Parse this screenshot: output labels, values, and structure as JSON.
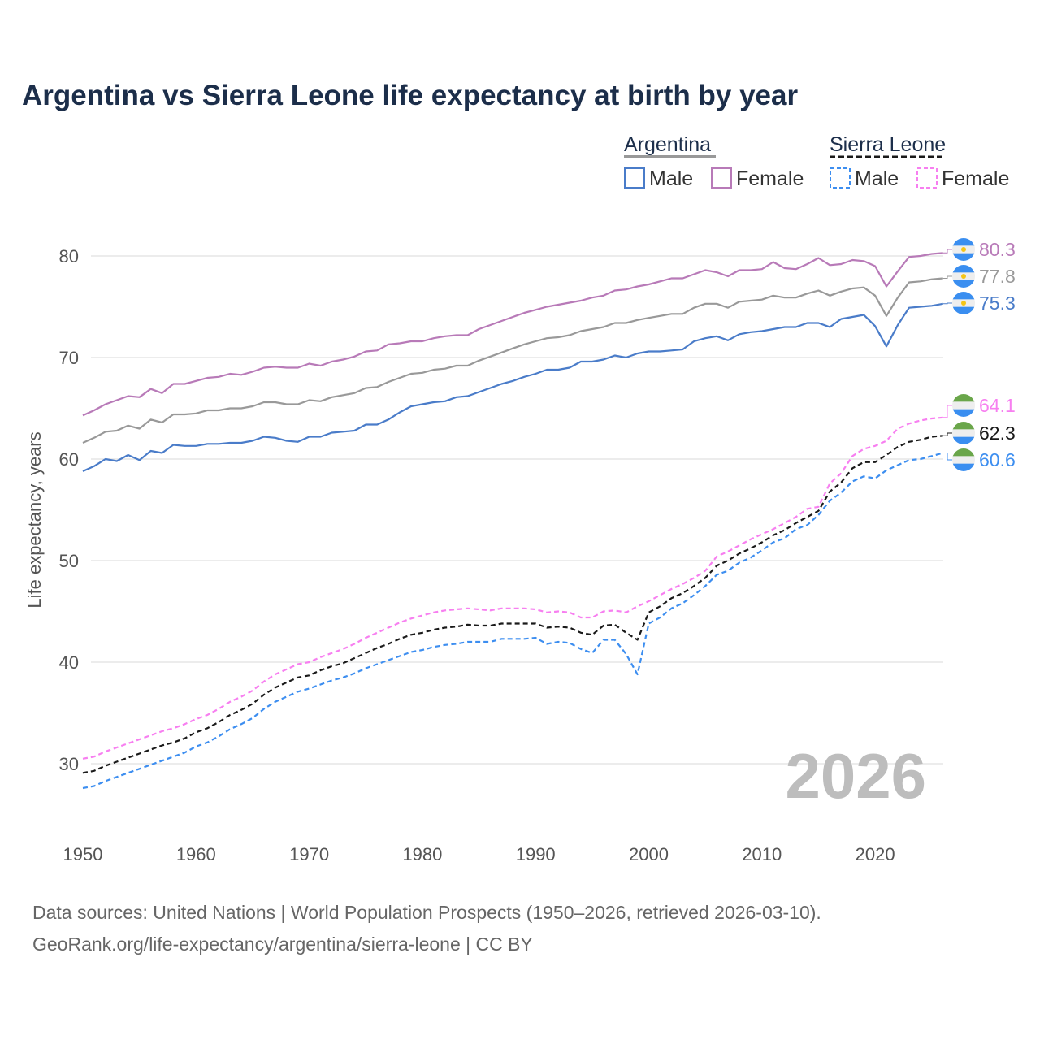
{
  "title": "Argentina vs Sierra Leone life expectancy at birth by year",
  "legend": {
    "groups": [
      {
        "name": "Argentina",
        "items": [
          "Male",
          "Female"
        ]
      },
      {
        "name": "Sierra Leone",
        "items": [
          "Male",
          "Female"
        ]
      }
    ]
  },
  "year_watermark": "2026",
  "source_line1": "Data sources: United Nations | World Population Prospects (1950–2026, retrieved 2026-03-10).",
  "source_line2": "GeoRank.org/life-expectancy/argentina/sierra-leone | CC BY",
  "chart_data": {
    "type": "line",
    "title": "Argentina vs Sierra Leone life expectancy at birth by year",
    "xlabel": "",
    "ylabel": "Life expectancy, years",
    "xlim": [
      1950,
      2026
    ],
    "ylim": [
      26,
      83
    ],
    "xticks": [
      "1950",
      "1960",
      "1970",
      "1980",
      "1990",
      "2000",
      "2010",
      "2020"
    ],
    "yticks": [
      "30",
      "40",
      "50",
      "60",
      "70",
      "80"
    ],
    "grid": true,
    "legend_position": "top-right",
    "x_start": 1950,
    "series": [
      {
        "name": "Argentina Female",
        "country": "Argentina",
        "color": "#b87ab8",
        "dash": false,
        "end_label": "80.3",
        "values": [
          64.3,
          64.8,
          65.4,
          65.8,
          66.2,
          66.1,
          66.9,
          66.5,
          67.4,
          67.4,
          67.7,
          68.0,
          68.1,
          68.4,
          68.3,
          68.6,
          69.0,
          69.1,
          69.0,
          69.0,
          69.4,
          69.2,
          69.6,
          69.8,
          70.1,
          70.6,
          70.7,
          71.3,
          71.4,
          71.6,
          71.6,
          71.9,
          72.1,
          72.2,
          72.2,
          72.8,
          73.2,
          73.6,
          74.0,
          74.4,
          74.7,
          75.0,
          75.2,
          75.4,
          75.6,
          75.9,
          76.1,
          76.6,
          76.7,
          77.0,
          77.2,
          77.5,
          77.8,
          77.8,
          78.2,
          78.6,
          78.4,
          78.0,
          78.6,
          78.6,
          78.7,
          79.4,
          78.8,
          78.7,
          79.2,
          79.8,
          79.1,
          79.2,
          79.6,
          79.5,
          79.0,
          77.0,
          78.5,
          79.9,
          80.0,
          80.2,
          80.3
        ]
      },
      {
        "name": "Argentina Total",
        "country": "Argentina",
        "color": "#999999",
        "dash": false,
        "end_label": "77.8",
        "values": [
          61.6,
          62.1,
          62.7,
          62.8,
          63.3,
          63.0,
          63.9,
          63.6,
          64.4,
          64.4,
          64.5,
          64.8,
          64.8,
          65.0,
          65.0,
          65.2,
          65.6,
          65.6,
          65.4,
          65.4,
          65.8,
          65.7,
          66.1,
          66.3,
          66.5,
          67.0,
          67.1,
          67.6,
          68.0,
          68.4,
          68.5,
          68.8,
          68.9,
          69.2,
          69.2,
          69.7,
          70.1,
          70.5,
          70.9,
          71.3,
          71.6,
          71.9,
          72.0,
          72.2,
          72.6,
          72.8,
          73.0,
          73.4,
          73.4,
          73.7,
          73.9,
          74.1,
          74.3,
          74.3,
          74.9,
          75.3,
          75.3,
          74.9,
          75.5,
          75.6,
          75.7,
          76.1,
          75.9,
          75.9,
          76.3,
          76.6,
          76.1,
          76.5,
          76.8,
          76.9,
          76.1,
          74.1,
          75.9,
          77.4,
          77.5,
          77.7,
          77.8
        ]
      },
      {
        "name": "Argentina Male",
        "country": "Argentina",
        "color": "#4a7cc9",
        "dash": false,
        "end_label": "75.3",
        "values": [
          58.8,
          59.3,
          60.0,
          59.8,
          60.4,
          59.9,
          60.8,
          60.6,
          61.4,
          61.3,
          61.3,
          61.5,
          61.5,
          61.6,
          61.6,
          61.8,
          62.2,
          62.1,
          61.8,
          61.7,
          62.2,
          62.2,
          62.6,
          62.7,
          62.8,
          63.4,
          63.4,
          63.9,
          64.6,
          65.2,
          65.4,
          65.6,
          65.7,
          66.1,
          66.2,
          66.6,
          67.0,
          67.4,
          67.7,
          68.1,
          68.4,
          68.8,
          68.8,
          69.0,
          69.6,
          69.6,
          69.8,
          70.2,
          70.0,
          70.4,
          70.6,
          70.6,
          70.7,
          70.8,
          71.6,
          71.9,
          72.1,
          71.7,
          72.3,
          72.5,
          72.6,
          72.8,
          73.0,
          73.0,
          73.4,
          73.4,
          73.0,
          73.8,
          74.0,
          74.2,
          73.1,
          71.1,
          73.2,
          74.9,
          75.0,
          75.1,
          75.3
        ]
      },
      {
        "name": "Sierra Leone Female",
        "country": "Sierra Leone",
        "color": "#f77ff0",
        "dash": true,
        "end_label": "64.1",
        "values": [
          30.5,
          30.7,
          31.2,
          31.6,
          32.0,
          32.4,
          32.8,
          33.2,
          33.5,
          33.9,
          34.4,
          34.8,
          35.4,
          36.1,
          36.6,
          37.2,
          38.1,
          38.8,
          39.3,
          39.8,
          40.0,
          40.5,
          40.9,
          41.3,
          41.8,
          42.4,
          42.9,
          43.4,
          43.9,
          44.3,
          44.6,
          44.9,
          45.1,
          45.2,
          45.3,
          45.2,
          45.1,
          45.3,
          45.3,
          45.3,
          45.2,
          44.9,
          45.0,
          44.9,
          44.4,
          44.4,
          45.0,
          45.1,
          44.9,
          45.5,
          46.0,
          46.6,
          47.2,
          47.7,
          48.3,
          49.0,
          50.4,
          50.9,
          51.5,
          52.1,
          52.6,
          53.1,
          53.7,
          54.3,
          55.1,
          55.3,
          57.6,
          58.6,
          60.3,
          61.0,
          61.3,
          61.8,
          63.0,
          63.5,
          63.8,
          64.0,
          64.1
        ]
      },
      {
        "name": "Sierra Leone Total",
        "country": "Sierra Leone",
        "color": "#1a1a1a",
        "dash": true,
        "end_label": "62.3",
        "values": [
          29.1,
          29.3,
          29.8,
          30.2,
          30.6,
          31.0,
          31.4,
          31.8,
          32.1,
          32.5,
          33.1,
          33.5,
          34.1,
          34.8,
          35.3,
          35.9,
          36.8,
          37.5,
          38.0,
          38.5,
          38.7,
          39.2,
          39.6,
          39.9,
          40.4,
          40.9,
          41.4,
          41.8,
          42.3,
          42.7,
          42.9,
          43.2,
          43.4,
          43.5,
          43.7,
          43.6,
          43.6,
          43.8,
          43.8,
          43.8,
          43.8,
          43.4,
          43.5,
          43.4,
          42.9,
          42.7,
          43.6,
          43.7,
          42.9,
          42.2,
          44.9,
          45.5,
          46.3,
          46.8,
          47.5,
          48.3,
          49.5,
          50.0,
          50.7,
          51.2,
          51.8,
          52.5,
          53.0,
          53.7,
          54.3,
          54.9,
          56.8,
          57.7,
          59.1,
          59.7,
          59.7,
          60.4,
          61.2,
          61.7,
          61.9,
          62.2,
          62.3
        ]
      },
      {
        "name": "Sierra Leone Male",
        "country": "Sierra Leone",
        "color": "#3d8ef0",
        "dash": true,
        "end_label": "60.6",
        "values": [
          27.6,
          27.8,
          28.3,
          28.7,
          29.1,
          29.5,
          29.9,
          30.3,
          30.7,
          31.1,
          31.7,
          32.1,
          32.7,
          33.4,
          33.9,
          34.5,
          35.4,
          36.1,
          36.6,
          37.1,
          37.4,
          37.8,
          38.2,
          38.5,
          38.9,
          39.4,
          39.8,
          40.2,
          40.6,
          41.0,
          41.2,
          41.5,
          41.7,
          41.8,
          42.0,
          42.0,
          42.0,
          42.3,
          42.3,
          42.3,
          42.4,
          41.8,
          42.0,
          41.9,
          41.3,
          40.9,
          42.2,
          42.2,
          40.8,
          38.8,
          43.8,
          44.4,
          45.3,
          45.8,
          46.6,
          47.5,
          48.6,
          49.0,
          49.8,
          50.3,
          51.0,
          51.8,
          52.2,
          53.1,
          53.5,
          54.5,
          55.9,
          56.7,
          57.8,
          58.3,
          58.1,
          58.9,
          59.4,
          59.9,
          60.0,
          60.3,
          60.6
        ]
      }
    ]
  }
}
